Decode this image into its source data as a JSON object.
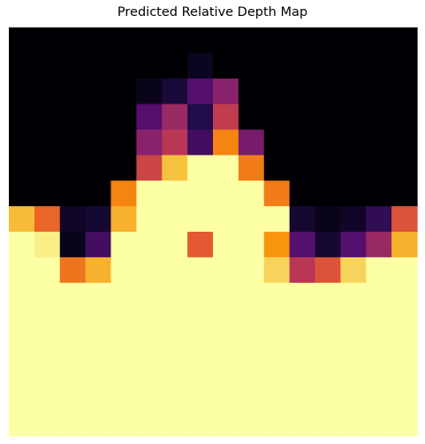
{
  "chart_data": {
    "type": "heatmap",
    "title": "Predicted Relative Depth Map",
    "axes_visible": false,
    "grid": false,
    "colormap": "inferno",
    "colormap_stops": [
      {
        "v": 0.0,
        "color": "#000004"
      },
      {
        "v": 0.15,
        "color": "#1f0c48"
      },
      {
        "v": 0.3,
        "color": "#550f6d"
      },
      {
        "v": 0.45,
        "color": "#88226a"
      },
      {
        "v": 0.6,
        "color": "#ba3655"
      },
      {
        "v": 0.72,
        "color": "#e35933"
      },
      {
        "v": 0.84,
        "color": "#f98e09"
      },
      {
        "v": 0.93,
        "color": "#f6c23e"
      },
      {
        "v": 1.0,
        "color": "#fcffa4"
      }
    ],
    "grid_shape": [
      16,
      16
    ],
    "values": [
      [
        0,
        0,
        0,
        0,
        0,
        0,
        0,
        0,
        0,
        0,
        0,
        0,
        0,
        0,
        0,
        0
      ],
      [
        0,
        0,
        0,
        0,
        0,
        0,
        0,
        0.06,
        0,
        0,
        0,
        0,
        0,
        0,
        0,
        0
      ],
      [
        0,
        0,
        0,
        0,
        0,
        0.05,
        0.12,
        0.3,
        0.45,
        0,
        0,
        0,
        0,
        0,
        0,
        0
      ],
      [
        0,
        0,
        0,
        0,
        0,
        0.3,
        0.5,
        0.15,
        0.62,
        0,
        0,
        0,
        0,
        0,
        0,
        0
      ],
      [
        0,
        0,
        0,
        0,
        0,
        0.45,
        0.6,
        0.25,
        0.82,
        0.4,
        0,
        0,
        0,
        0,
        0,
        0
      ],
      [
        0,
        0,
        0,
        0,
        0,
        0.65,
        0.93,
        1,
        1,
        0.8,
        0,
        0,
        0,
        0,
        0,
        0
      ],
      [
        0,
        0,
        0,
        0,
        0.82,
        1,
        1,
        1,
        1,
        1,
        0.8,
        0,
        0,
        0,
        0,
        0
      ],
      [
        0.92,
        0.75,
        0.08,
        0.1,
        0.9,
        1,
        1,
        1,
        1,
        1,
        1,
        0.1,
        0.05,
        0.08,
        0.2,
        0.7
      ],
      [
        1,
        0.98,
        0.05,
        0.25,
        1,
        1,
        1,
        0.72,
        1,
        1,
        0.85,
        0.3,
        0.1,
        0.3,
        0.5,
        0.9
      ],
      [
        1,
        1,
        0.78,
        0.9,
        1,
        1,
        1,
        1,
        1,
        1,
        0.95,
        0.6,
        0.7,
        0.95,
        1,
        1
      ],
      [
        1,
        1,
        1,
        1,
        1,
        1,
        1,
        1,
        1,
        1,
        1,
        1,
        1,
        1,
        1,
        1
      ],
      [
        1,
        1,
        1,
        1,
        1,
        1,
        1,
        1,
        1,
        1,
        1,
        1,
        1,
        1,
        1,
        1
      ],
      [
        1,
        1,
        1,
        1,
        1,
        1,
        1,
        1,
        1,
        1,
        1,
        1,
        1,
        1,
        1,
        1
      ],
      [
        1,
        1,
        1,
        1,
        1,
        1,
        1,
        1,
        1,
        1,
        1,
        1,
        1,
        1,
        1,
        1
      ],
      [
        1,
        1,
        1,
        1,
        1,
        1,
        1,
        1,
        1,
        1,
        1,
        1,
        1,
        1,
        1,
        1
      ],
      [
        1,
        1,
        1,
        1,
        1,
        1,
        1,
        1,
        1,
        1,
        1,
        1,
        1,
        1,
        1,
        1
      ]
    ]
  }
}
